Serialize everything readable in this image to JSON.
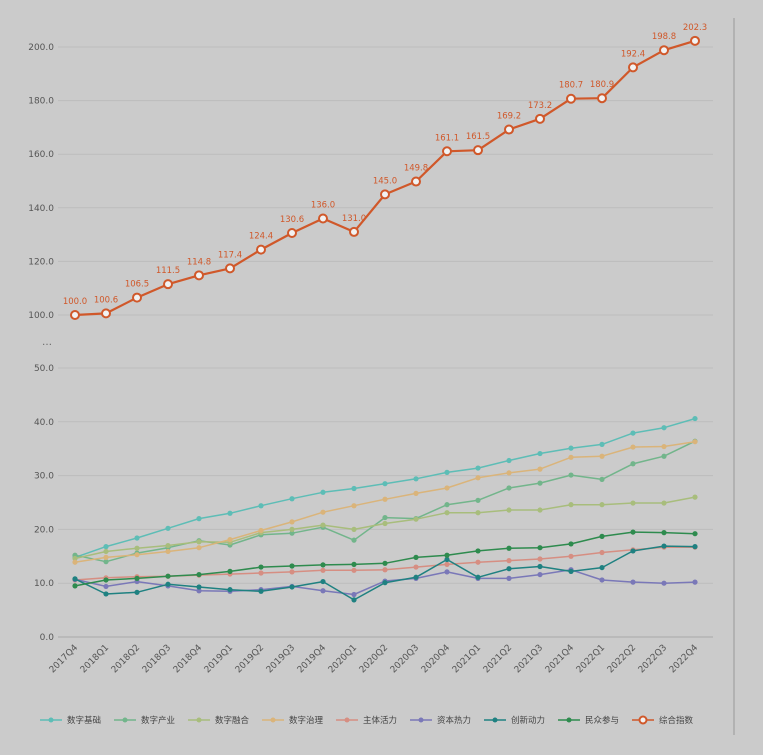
{
  "chart_data": {
    "type": "line",
    "title": "",
    "xlabel": "",
    "ylabel": "",
    "axis_break": "…",
    "categories": [
      "2017Q4",
      "2018Q1",
      "2018Q2",
      "2018Q3",
      "2018Q4",
      "2019Q1",
      "2019Q2",
      "2019Q3",
      "2019Q4",
      "2020Q1",
      "2020Q2",
      "2020Q3",
      "2020Q4",
      "2021Q1",
      "2021Q2",
      "2021Q3",
      "2021Q4",
      "2022Q1",
      "2022Q2",
      "2022Q3",
      "2022Q4"
    ],
    "upper_yticks": [
      "100.0",
      "120.0",
      "140.0",
      "160.0",
      "180.0",
      "200.0"
    ],
    "lower_yticks": [
      "0.0",
      "10.0",
      "20.0",
      "30.0",
      "40.0",
      "50.0"
    ],
    "upper_ylim": [
      100,
      200
    ],
    "lower_ylim": [
      0,
      50
    ],
    "grid": true,
    "legend_position": "bottom",
    "series": [
      {
        "name": "数字基础",
        "color": "#5dbdb6",
        "marker": "dot",
        "values": [
          14.8,
          16.8,
          18.4,
          20.2,
          22.0,
          23.0,
          24.4,
          25.7,
          26.9,
          27.6,
          28.5,
          29.4,
          30.6,
          31.4,
          32.8,
          34.1,
          35.1,
          35.8,
          37.9,
          38.9,
          40.6
        ]
      },
      {
        "name": "数字产业",
        "color": "#72b58b",
        "marker": "dot",
        "values": [
          15.2,
          14.0,
          15.6,
          16.6,
          17.9,
          17.1,
          19.0,
          19.3,
          20.4,
          18.0,
          22.2,
          22.0,
          24.6,
          25.4,
          27.7,
          28.6,
          30.1,
          29.3,
          32.2,
          33.6,
          36.4
        ]
      },
      {
        "name": "数字融合",
        "color": "#a8bd7c",
        "marker": "dot",
        "values": [
          14.6,
          15.9,
          16.5,
          17.0,
          17.7,
          17.6,
          19.4,
          20.0,
          20.8,
          20.0,
          21.1,
          21.9,
          23.1,
          23.1,
          23.6,
          23.6,
          24.6,
          24.6,
          24.9,
          24.9,
          26.0
        ]
      },
      {
        "name": "数字治理",
        "color": "#dab47a",
        "marker": "dot",
        "values": [
          13.9,
          14.8,
          15.3,
          15.9,
          16.6,
          18.1,
          19.8,
          21.4,
          23.2,
          24.4,
          25.6,
          26.7,
          27.7,
          29.6,
          30.5,
          31.2,
          33.4,
          33.6,
          35.3,
          35.4,
          36.3
        ]
      },
      {
        "name": "主体活力",
        "color": "#d68e82",
        "marker": "dot",
        "values": [
          10.6,
          11.0,
          11.2,
          11.3,
          11.5,
          11.7,
          11.9,
          12.1,
          12.4,
          12.4,
          12.5,
          13.0,
          13.5,
          13.9,
          14.2,
          14.5,
          15.0,
          15.7,
          16.2,
          16.7,
          16.7
        ]
      },
      {
        "name": "资本热力",
        "color": "#7a78b8",
        "marker": "dot",
        "values": [
          10.7,
          9.4,
          10.3,
          9.5,
          8.6,
          8.5,
          8.8,
          9.4,
          8.6,
          7.9,
          10.4,
          10.9,
          12.1,
          10.9,
          10.9,
          11.6,
          12.5,
          10.6,
          10.2,
          10.0,
          10.2
        ]
      },
      {
        "name": "创新动力",
        "color": "#1f8181",
        "marker": "dot",
        "values": [
          10.8,
          8.0,
          8.3,
          9.8,
          9.3,
          8.8,
          8.5,
          9.3,
          10.3,
          6.9,
          10.1,
          11.1,
          14.4,
          11.1,
          12.7,
          13.1,
          12.2,
          12.9,
          16.0,
          16.9,
          16.8
        ]
      },
      {
        "name": "民众参与",
        "color": "#2e8b4e",
        "marker": "dot",
        "values": [
          9.5,
          10.6,
          10.9,
          11.3,
          11.6,
          12.2,
          13.0,
          13.2,
          13.4,
          13.5,
          13.7,
          14.8,
          15.2,
          16.0,
          16.5,
          16.6,
          17.3,
          18.7,
          19.5,
          19.4,
          19.2
        ]
      },
      {
        "name": "综合指数",
        "color": "#d0582a",
        "marker": "ring",
        "values": [
          100.0,
          100.6,
          106.5,
          111.5,
          114.8,
          117.4,
          124.4,
          130.6,
          136.0,
          131.0,
          145.0,
          149.8,
          161.1,
          161.5,
          169.2,
          173.2,
          180.7,
          180.9,
          192.4,
          198.8,
          202.3
        ]
      }
    ],
    "data_labels": [
      "100.0",
      "100.6",
      "106.5",
      "111.5",
      "114.8",
      "117.4",
      "124.4",
      "130.6",
      "136.0",
      "131.0",
      "145.0",
      "149.8",
      "161.1",
      "161.5",
      "169.2",
      "173.2",
      "180.7",
      "180.9",
      "192.4",
      "198.8",
      "202.3"
    ]
  }
}
